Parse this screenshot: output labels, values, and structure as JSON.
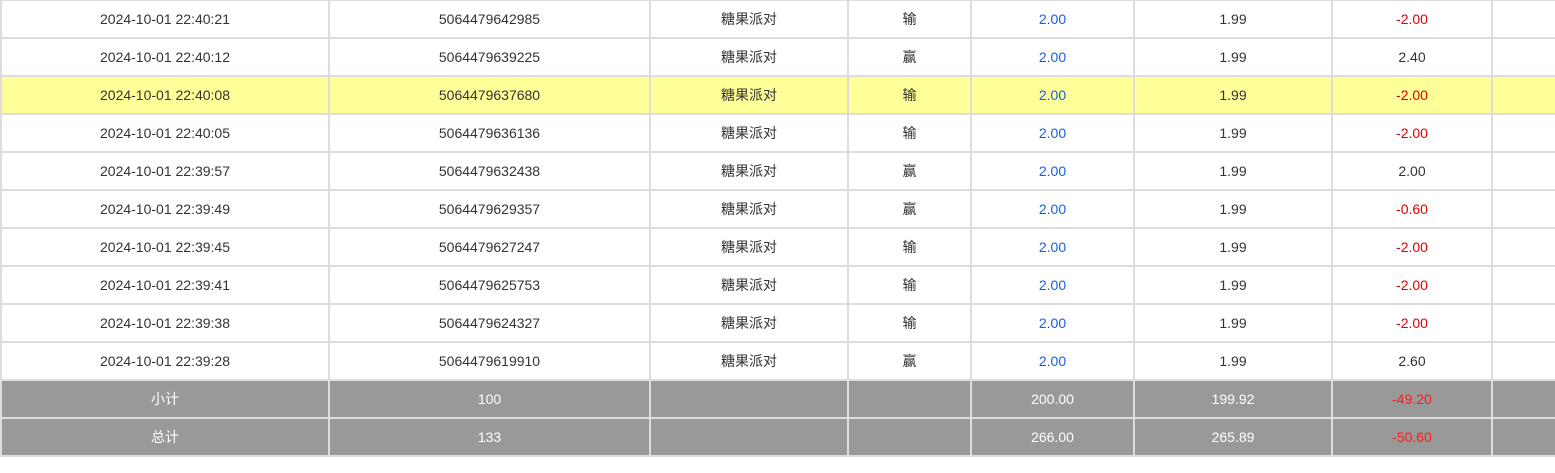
{
  "colors": {
    "highlight": "#ffff99",
    "bet_blue": "#1a5fd6",
    "loss_red": "#e00000",
    "summary_bg": "#999999"
  },
  "rows": [
    {
      "time": "2024-10-01 22:40:21",
      "id": "5064479642985",
      "game": "糖果派对",
      "result": "输",
      "bet": "2.00",
      "valid": "1.99",
      "profit": "-2.00",
      "neg": true
    },
    {
      "time": "2024-10-01 22:40:12",
      "id": "5064479639225",
      "game": "糖果派对",
      "result": "赢",
      "bet": "2.00",
      "valid": "1.99",
      "profit": "2.40",
      "neg": false
    },
    {
      "time": "2024-10-01 22:40:08",
      "id": "5064479637680",
      "game": "糖果派对",
      "result": "输",
      "bet": "2.00",
      "valid": "1.99",
      "profit": "-2.00",
      "neg": true,
      "highlight": true
    },
    {
      "time": "2024-10-01 22:40:05",
      "id": "5064479636136",
      "game": "糖果派对",
      "result": "输",
      "bet": "2.00",
      "valid": "1.99",
      "profit": "-2.00",
      "neg": true
    },
    {
      "time": "2024-10-01 22:39:57",
      "id": "5064479632438",
      "game": "糖果派对",
      "result": "赢",
      "bet": "2.00",
      "valid": "1.99",
      "profit": "2.00",
      "neg": false
    },
    {
      "time": "2024-10-01 22:39:49",
      "id": "5064479629357",
      "game": "糖果派对",
      "result": "赢",
      "bet": "2.00",
      "valid": "1.99",
      "profit": "-0.60",
      "neg": true
    },
    {
      "time": "2024-10-01 22:39:45",
      "id": "5064479627247",
      "game": "糖果派对",
      "result": "输",
      "bet": "2.00",
      "valid": "1.99",
      "profit": "-2.00",
      "neg": true
    },
    {
      "time": "2024-10-01 22:39:41",
      "id": "5064479625753",
      "game": "糖果派对",
      "result": "输",
      "bet": "2.00",
      "valid": "1.99",
      "profit": "-2.00",
      "neg": true
    },
    {
      "time": "2024-10-01 22:39:38",
      "id": "5064479624327",
      "game": "糖果派对",
      "result": "输",
      "bet": "2.00",
      "valid": "1.99",
      "profit": "-2.00",
      "neg": true
    },
    {
      "time": "2024-10-01 22:39:28",
      "id": "5064479619910",
      "game": "糖果派对",
      "result": "赢",
      "bet": "2.00",
      "valid": "1.99",
      "profit": "2.60",
      "neg": false
    }
  ],
  "subtotal": {
    "label": "小计",
    "count": "100",
    "bet": "200.00",
    "valid": "199.92",
    "profit": "-49.20"
  },
  "total": {
    "label": "总计",
    "count": "133",
    "bet": "266.00",
    "valid": "265.89",
    "profit": "-50.60"
  }
}
